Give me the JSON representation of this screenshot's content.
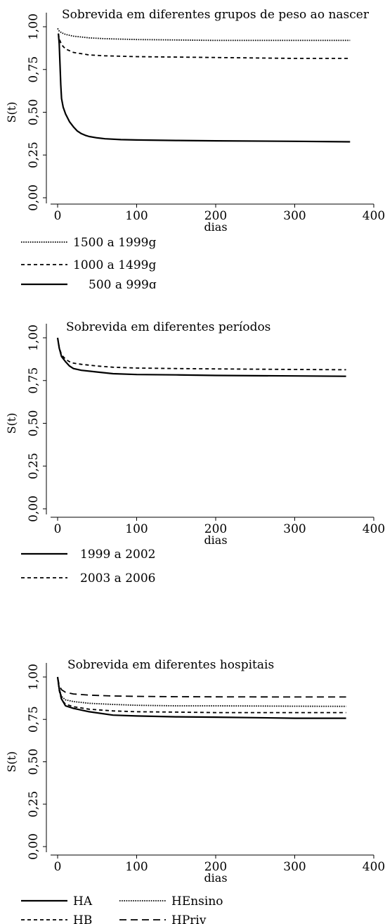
{
  "chart_data": [
    {
      "type": "line",
      "title": "Sobrevida em diferentes grupos de peso ao nascer",
      "xlabel": "dias",
      "ylabel": "S(t)",
      "xlim": [
        0,
        400
      ],
      "ylim": [
        0,
        1
      ],
      "x_ticks": [
        "0",
        "100",
        "200",
        "300",
        "400"
      ],
      "y_ticks": [
        "0,00",
        "0,25",
        "0,50",
        "0,75",
        "1,00"
      ],
      "grid": false,
      "legend_position": "bottom",
      "series": [
        {
          "name": "1500 a 1999g",
          "style": "dotted",
          "x": [
            0,
            2,
            5,
            10,
            20,
            40,
            60,
            100,
            200,
            300,
            370
          ],
          "y": [
            0.99,
            0.975,
            0.965,
            0.955,
            0.945,
            0.935,
            0.93,
            0.925,
            0.92,
            0.92,
            0.92
          ]
        },
        {
          "name": "1000 a 1499g",
          "style": "dashed",
          "x": [
            1,
            2,
            5,
            10,
            20,
            40,
            60,
            100,
            200,
            300,
            370
          ],
          "y": [
            0.96,
            0.93,
            0.895,
            0.87,
            0.85,
            0.835,
            0.83,
            0.825,
            0.82,
            0.815,
            0.815
          ]
        },
        {
          "name": "500 a 999g",
          "style": "solid",
          "x": [
            1,
            2,
            3,
            4,
            5,
            7,
            10,
            15,
            20,
            25,
            30,
            35,
            40,
            50,
            60,
            80,
            100,
            150,
            200,
            300,
            370
          ],
          "y": [
            0.96,
            0.9,
            0.78,
            0.66,
            0.58,
            0.53,
            0.49,
            0.445,
            0.415,
            0.39,
            0.375,
            0.365,
            0.358,
            0.35,
            0.345,
            0.34,
            0.338,
            0.335,
            0.333,
            0.33,
            0.327
          ]
        }
      ]
    },
    {
      "type": "line",
      "title": "Sobrevida em diferentes períodos",
      "xlabel": "dias",
      "ylabel": "S(t)",
      "xlim": [
        0,
        400
      ],
      "ylim": [
        0,
        1
      ],
      "x_ticks": [
        "0",
        "100",
        "200",
        "300",
        "400"
      ],
      "y_ticks": [
        "0,00",
        "0,25",
        "0,50",
        "0,75",
        "1,00"
      ],
      "grid": false,
      "legend_position": "bottom",
      "series": [
        {
          "name": "1999 a 2002",
          "style": "solid",
          "x": [
            0,
            2,
            5,
            10,
            15,
            20,
            30,
            50,
            70,
            100,
            150,
            200,
            300,
            365
          ],
          "y": [
            1.0,
            0.94,
            0.89,
            0.86,
            0.835,
            0.82,
            0.81,
            0.8,
            0.79,
            0.785,
            0.783,
            0.78,
            0.777,
            0.775
          ]
        },
        {
          "name": "2003 a 2006",
          "style": "dashed",
          "x": [
            0,
            2,
            5,
            10,
            15,
            20,
            30,
            50,
            70,
            100,
            150,
            200,
            300,
            365
          ],
          "y": [
            1.0,
            0.945,
            0.9,
            0.875,
            0.86,
            0.852,
            0.845,
            0.835,
            0.828,
            0.823,
            0.82,
            0.818,
            0.815,
            0.813
          ]
        }
      ]
    },
    {
      "type": "line",
      "title": "Sobrevida em diferentes hospitais",
      "xlabel": "dias",
      "ylabel": "S(t)",
      "xlim": [
        0,
        400
      ],
      "ylim": [
        0,
        1
      ],
      "x_ticks": [
        "0",
        "100",
        "200",
        "300",
        "400"
      ],
      "y_ticks": [
        "0,00",
        "0,25",
        "0,50",
        "0,75",
        "1,00"
      ],
      "grid": false,
      "legend_position": "bottom",
      "series": [
        {
          "name": "HA",
          "style": "solid",
          "x": [
            0,
            2,
            5,
            10,
            20,
            40,
            70,
            100,
            150,
            200,
            250,
            300,
            365
          ],
          "y": [
            1.0,
            0.93,
            0.87,
            0.83,
            0.815,
            0.795,
            0.775,
            0.77,
            0.765,
            0.763,
            0.76,
            0.757,
            0.757
          ]
        },
        {
          "name": "HEnsino",
          "style": "dotted",
          "x": [
            0,
            2,
            5,
            10,
            20,
            40,
            70,
            100,
            150,
            200,
            300,
            365
          ],
          "y": [
            1.0,
            0.93,
            0.885,
            0.865,
            0.855,
            0.845,
            0.838,
            0.833,
            0.83,
            0.83,
            0.828,
            0.827
          ]
        },
        {
          "name": "HB",
          "style": "dashed",
          "x": [
            0,
            2,
            5,
            10,
            20,
            40,
            70,
            100,
            150,
            200,
            300,
            365
          ],
          "y": [
            1.0,
            0.92,
            0.865,
            0.84,
            0.825,
            0.81,
            0.8,
            0.795,
            0.793,
            0.79,
            0.79,
            0.79
          ]
        },
        {
          "name": "HPriv",
          "style": "longdash",
          "x": [
            0,
            2,
            5,
            10,
            20,
            40,
            70,
            100,
            150,
            200,
            300,
            365
          ],
          "y": [
            1.0,
            0.95,
            0.925,
            0.91,
            0.9,
            0.893,
            0.888,
            0.886,
            0.884,
            0.883,
            0.882,
            0.882
          ]
        }
      ]
    }
  ]
}
